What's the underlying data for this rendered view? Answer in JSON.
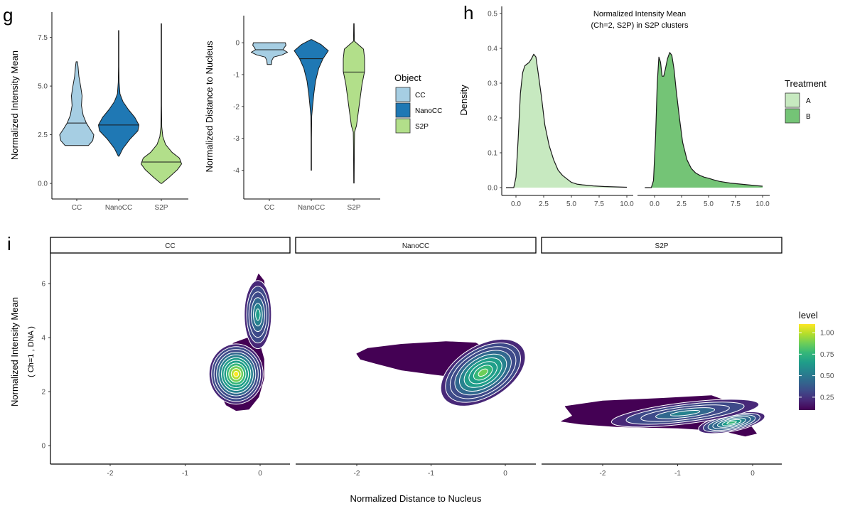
{
  "panel_labels": {
    "g": "g",
    "h": "h",
    "i": "i"
  },
  "chart_data": [
    {
      "id": "g_intensity",
      "type": "violin",
      "title": "",
      "xlabel": "",
      "ylabel": "Normalized Intensity Mean",
      "categories": [
        "CC",
        "NanoCC",
        "S2P"
      ],
      "colors": [
        "#a6cee3",
        "#1f78b4",
        "#b2df8a"
      ],
      "ylim": [
        -0.8,
        8.8
      ],
      "yticks": [
        0.0,
        2.5,
        5.0,
        7.5
      ],
      "ytick_labels": [
        "0.0",
        "2.5",
        "5.0",
        "7.5"
      ],
      "violins": [
        {
          "name": "CC",
          "min": 1.95,
          "max": 6.25,
          "median": 3.1,
          "profile": [
            [
              1.95,
              0.55
            ],
            [
              2.2,
              0.75
            ],
            [
              2.5,
              0.8
            ],
            [
              2.8,
              0.62
            ],
            [
              3.1,
              0.45
            ],
            [
              3.5,
              0.3
            ],
            [
              4.0,
              0.22
            ],
            [
              4.5,
              0.25
            ],
            [
              5.0,
              0.18
            ],
            [
              5.5,
              0.1
            ],
            [
              6.0,
              0.06
            ],
            [
              6.25,
              0.03
            ]
          ]
        },
        {
          "name": "NanoCC",
          "min": 1.4,
          "max": 7.85,
          "median": 3.0,
          "profile": [
            [
              1.4,
              0.02
            ],
            [
              1.8,
              0.2
            ],
            [
              2.3,
              0.55
            ],
            [
              2.7,
              0.9
            ],
            [
              3.0,
              0.95
            ],
            [
              3.4,
              0.75
            ],
            [
              3.8,
              0.45
            ],
            [
              4.2,
              0.2
            ],
            [
              4.6,
              0.06
            ],
            [
              5.2,
              0.02
            ],
            [
              6.0,
              0.01
            ],
            [
              7.85,
              0.01
            ]
          ]
        },
        {
          "name": "S2P",
          "min": 0.0,
          "max": 8.2,
          "median": 1.1,
          "profile": [
            [
              0.0,
              0.02
            ],
            [
              0.3,
              0.35
            ],
            [
              0.7,
              0.75
            ],
            [
              1.0,
              0.95
            ],
            [
              1.3,
              0.85
            ],
            [
              1.6,
              0.5
            ],
            [
              2.0,
              0.2
            ],
            [
              2.4,
              0.07
            ],
            [
              2.9,
              0.02
            ],
            [
              4.0,
              0.01
            ],
            [
              8.2,
              0.01
            ]
          ]
        }
      ]
    },
    {
      "id": "g_distance",
      "type": "violin",
      "title": "",
      "xlabel": "",
      "ylabel": "Normalized Distance to Nucleus",
      "categories": [
        "CC",
        "NanoCC",
        "S2P"
      ],
      "colors": [
        "#a6cee3",
        "#1f78b4",
        "#b2df8a"
      ],
      "ylim": [
        -4.9,
        0.85
      ],
      "yticks": [
        0,
        -1,
        -2,
        -3,
        -4
      ],
      "ytick_labels": [
        "0",
        "-1",
        "-2",
        "-3",
        "-4"
      ],
      "legend": {
        "title": "Object",
        "entries": [
          "CC",
          "NanoCC",
          "S2P"
        ],
        "position": "right"
      },
      "violins": [
        {
          "name": "CC",
          "min": -0.68,
          "max": 0.0,
          "median": -0.22,
          "profile": [
            [
              0.0,
              0.75
            ],
            [
              -0.08,
              0.78
            ],
            [
              -0.15,
              0.7
            ],
            [
              -0.22,
              0.65
            ],
            [
              -0.3,
              0.85
            ],
            [
              -0.38,
              0.6
            ],
            [
              -0.45,
              0.2
            ],
            [
              -0.55,
              0.12
            ],
            [
              -0.68,
              0.1
            ]
          ]
        },
        {
          "name": "NanoCC",
          "min": -4.0,
          "max": 0.1,
          "median": -0.5,
          "profile": [
            [
              0.1,
              0.02
            ],
            [
              -0.05,
              0.45
            ],
            [
              -0.25,
              0.8
            ],
            [
              -0.5,
              0.55
            ],
            [
              -0.8,
              0.35
            ],
            [
              -1.2,
              0.2
            ],
            [
              -1.6,
              0.12
            ],
            [
              -2.0,
              0.06
            ],
            [
              -2.3,
              0.02
            ],
            [
              -3.0,
              0.01
            ],
            [
              -4.0,
              0.01
            ]
          ]
        },
        {
          "name": "S2P",
          "min": -4.4,
          "max": 0.6,
          "median": -0.92,
          "profile": [
            [
              0.6,
              0.01
            ],
            [
              0.05,
              0.02
            ],
            [
              -0.2,
              0.45
            ],
            [
              -0.5,
              0.5
            ],
            [
              -0.9,
              0.5
            ],
            [
              -1.3,
              0.38
            ],
            [
              -1.7,
              0.3
            ],
            [
              -2.1,
              0.22
            ],
            [
              -2.6,
              0.12
            ],
            [
              -2.8,
              0.03
            ],
            [
              -3.3,
              0.02
            ],
            [
              -4.4,
              0.01
            ]
          ]
        }
      ]
    },
    {
      "id": "h_density",
      "type": "area",
      "title": "Normalized Intensity Mean",
      "subtitle": "(Ch=2, S2P) in S2P clusters",
      "xlabel": "",
      "ylabel": "Density",
      "xlim": [
        -1,
        10
      ],
      "ylim": [
        -0.02,
        0.52
      ],
      "xticks": [
        0.0,
        2.5,
        5.0,
        7.5,
        10.0
      ],
      "xtick_labels": [
        "0.0",
        "2.5",
        "5.0",
        "7.5",
        "10.0"
      ],
      "yticks": [
        0.0,
        0.1,
        0.2,
        0.3,
        0.4,
        0.5
      ],
      "ytick_labels": [
        "0.0",
        "0.1",
        "0.2",
        "0.3",
        "0.4",
        "0.5"
      ],
      "legend": {
        "title": "Treatment",
        "entries": [
          "A",
          "B"
        ],
        "position": "right"
      },
      "series": [
        {
          "name": "A",
          "color": "#c7e9c0",
          "x": [
            -0.9,
            -0.2,
            0.0,
            0.2,
            0.4,
            0.6,
            0.8,
            1.0,
            1.2,
            1.4,
            1.6,
            1.8,
            2.0,
            2.3,
            2.6,
            3.0,
            3.4,
            3.8,
            4.2,
            4.6,
            5.0,
            5.5,
            6.0,
            7.0,
            8.0,
            9.0,
            10.0
          ],
          "y": [
            0.0,
            0.0,
            0.03,
            0.14,
            0.27,
            0.33,
            0.35,
            0.355,
            0.36,
            0.37,
            0.383,
            0.375,
            0.33,
            0.26,
            0.18,
            0.12,
            0.08,
            0.05,
            0.035,
            0.025,
            0.015,
            0.01,
            0.008,
            0.005,
            0.003,
            0.002,
            0.001
          ]
        },
        {
          "name": "B",
          "color": "#74c476",
          "x": [
            -0.9,
            -0.3,
            -0.1,
            0.1,
            0.25,
            0.4,
            0.55,
            0.7,
            0.85,
            1.0,
            1.2,
            1.4,
            1.6,
            1.8,
            2.0,
            2.3,
            2.6,
            3.0,
            3.4,
            3.8,
            4.2,
            4.6,
            5.0,
            5.5,
            6.0,
            7.0,
            8.0,
            9.0,
            10.0
          ],
          "y": [
            0.0,
            0.0,
            0.02,
            0.15,
            0.3,
            0.375,
            0.36,
            0.32,
            0.32,
            0.34,
            0.37,
            0.388,
            0.38,
            0.34,
            0.28,
            0.2,
            0.13,
            0.08,
            0.055,
            0.042,
            0.035,
            0.03,
            0.027,
            0.022,
            0.018,
            0.013,
            0.01,
            0.007,
            0.004
          ]
        }
      ]
    },
    {
      "id": "i_density2d",
      "type": "contour",
      "title": "",
      "xlabel": "Normalized Distance to Nucleus",
      "ylabel": "Normalized Intensity Mean",
      "ylabel2": "( Ch=1 , DNA )",
      "facets": [
        "CC",
        "NanoCC",
        "S2P"
      ],
      "xlim": [
        -2.75,
        0.4
      ],
      "ylim": [
        -0.6,
        7.1
      ],
      "xticks": [
        -2,
        -1,
        0
      ],
      "xtick_labels": [
        "-2",
        "-1",
        "0"
      ],
      "yticks": [
        0,
        2,
        4,
        6
      ],
      "ytick_labels": [
        "0",
        "2",
        "4",
        "6"
      ],
      "colorbar": {
        "title": "level",
        "ticks": [
          0.25,
          0.5,
          0.75,
          1.0
        ],
        "tick_labels": [
          "0.25",
          "0.50",
          "0.75",
          "1.00"
        ],
        "range": [
          0.1,
          1.1
        ],
        "palette": [
          "#440154",
          "#482878",
          "#3e4a89",
          "#31688e",
          "#26828e",
          "#1f9e89",
          "#35b779",
          "#6ece58",
          "#b5de2b",
          "#fde725"
        ]
      },
      "panels": [
        {
          "facet": "CC",
          "peaks": [
            {
              "x": -0.32,
              "y": 2.65,
              "sx": 0.2,
              "sy": 0.62,
              "rot": 0,
              "level": 1.05
            },
            {
              "x": -0.03,
              "y": 4.85,
              "sx": 0.1,
              "sy": 0.7,
              "rot": 0,
              "level": 0.55
            }
          ],
          "outline": [
            [
              -0.55,
              2.0
            ],
            [
              -0.6,
              2.6
            ],
            [
              -0.62,
              3.1
            ],
            [
              -0.5,
              3.4
            ],
            [
              -0.35,
              3.8
            ],
            [
              -0.15,
              4.0
            ],
            [
              -0.12,
              4.5
            ],
            [
              -0.15,
              5.2
            ],
            [
              -0.1,
              5.8
            ],
            [
              -0.02,
              6.35
            ],
            [
              0.05,
              6.1
            ],
            [
              0.08,
              5.3
            ],
            [
              0.06,
              4.3
            ],
            [
              0.0,
              3.7
            ],
            [
              0.05,
              3.2
            ],
            [
              0.05,
              2.5
            ],
            [
              -0.02,
              1.8
            ],
            [
              -0.15,
              1.35
            ],
            [
              -0.32,
              1.3
            ],
            [
              -0.45,
              1.5
            ]
          ]
        },
        {
          "facet": "NanoCC",
          "peaks": [
            {
              "x": -0.3,
              "y": 2.7,
              "sx": 0.35,
              "sy": 0.55,
              "rot": -0.55,
              "level": 0.85
            }
          ],
          "outline": [
            [
              -2.0,
              3.4
            ],
            [
              -1.85,
              3.6
            ],
            [
              -1.4,
              3.75
            ],
            [
              -0.8,
              3.85
            ],
            [
              -0.4,
              3.8
            ],
            [
              -0.15,
              3.4
            ],
            [
              0.0,
              2.8
            ],
            [
              0.05,
              2.3
            ],
            [
              -0.1,
              2.0
            ],
            [
              -0.35,
              2.1
            ],
            [
              -0.7,
              2.55
            ],
            [
              -1.0,
              2.65
            ],
            [
              -1.4,
              2.8
            ],
            [
              -1.75,
              3.05
            ],
            [
              -1.95,
              3.2
            ]
          ]
        },
        {
          "facet": "S2P",
          "peaks": [
            {
              "x": -0.28,
              "y": 0.85,
              "sx": 0.25,
              "sy": 0.18,
              "rot": -0.2,
              "level": 0.72
            },
            {
              "x": -0.9,
              "y": 1.2,
              "sx": 0.55,
              "sy": 0.22,
              "rot": -0.12,
              "level": 0.5
            }
          ],
          "outline": [
            [
              -2.55,
              0.9
            ],
            [
              -2.4,
              1.1
            ],
            [
              -2.5,
              1.45
            ],
            [
              -2.0,
              1.65
            ],
            [
              -1.2,
              1.75
            ],
            [
              -0.55,
              1.85
            ],
            [
              -0.3,
              1.6
            ],
            [
              -0.1,
              1.0
            ],
            [
              0.05,
              0.45
            ],
            [
              -0.1,
              0.35
            ],
            [
              -0.4,
              0.55
            ],
            [
              -1.0,
              0.65
            ],
            [
              -1.8,
              0.7
            ],
            [
              -2.3,
              0.8
            ]
          ]
        }
      ]
    }
  ]
}
